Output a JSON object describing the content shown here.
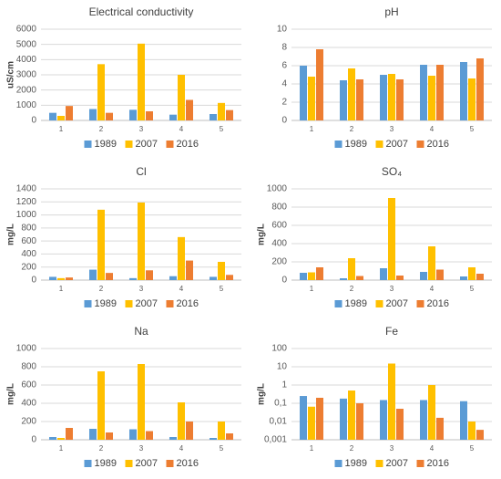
{
  "chart_data": [
    {
      "type": "bar",
      "title": "Electrical conductivity",
      "y_label": "uS/cm",
      "categories": [
        "1",
        "2",
        "3",
        "4",
        "5"
      ],
      "series": [
        {
          "name": "1989",
          "color": "#5b9bd5",
          "values": [
            500,
            750,
            700,
            380,
            420
          ]
        },
        {
          "name": "2007",
          "color": "#ffc000",
          "values": [
            300,
            3700,
            5050,
            3000,
            1150
          ]
        },
        {
          "name": "2016",
          "color": "#ed7d31",
          "values": [
            950,
            500,
            600,
            1350,
            680
          ]
        }
      ],
      "ylim": [
        0,
        6000
      ],
      "yticks": [
        0,
        1000,
        2000,
        3000,
        4000,
        5000,
        6000
      ],
      "grid": true,
      "legend": "bottom"
    },
    {
      "type": "bar",
      "title": "pH",
      "categories": [
        "1",
        "2",
        "3",
        "4",
        "5"
      ],
      "series": [
        {
          "name": "1989",
          "color": "#5b9bd5",
          "values": [
            6.0,
            4.4,
            5.0,
            6.1,
            6.4
          ]
        },
        {
          "name": "2007",
          "color": "#ffc000",
          "values": [
            4.8,
            5.7,
            5.1,
            4.9,
            4.6
          ]
        },
        {
          "name": "2016",
          "color": "#ed7d31",
          "values": [
            7.8,
            4.5,
            4.5,
            6.1,
            6.8
          ]
        }
      ],
      "ylim": [
        0,
        10
      ],
      "yticks": [
        0,
        2,
        4,
        6,
        8,
        10
      ],
      "grid": true,
      "legend": "bottom"
    },
    {
      "type": "bar",
      "title": "Cl",
      "y_label": "mg/L",
      "categories": [
        "1",
        "2",
        "3",
        "4",
        "5"
      ],
      "series": [
        {
          "name": "1989",
          "color": "#5b9bd5",
          "values": [
            50,
            160,
            30,
            60,
            50
          ]
        },
        {
          "name": "2007",
          "color": "#ffc000",
          "values": [
            30,
            1080,
            1190,
            660,
            280
          ]
        },
        {
          "name": "2016",
          "color": "#ed7d31",
          "values": [
            40,
            110,
            150,
            300,
            80
          ]
        }
      ],
      "ylim": [
        0,
        1400
      ],
      "yticks": [
        0,
        200,
        400,
        600,
        800,
        1000,
        1200,
        1400
      ],
      "grid": true,
      "legend": "bottom"
    },
    {
      "type": "bar",
      "title": "SO₄",
      "y_label": "mg/L",
      "categories": [
        "1",
        "2",
        "3",
        "4",
        "5"
      ],
      "series": [
        {
          "name": "1989",
          "color": "#5b9bd5",
          "values": [
            80,
            20,
            130,
            90,
            40
          ]
        },
        {
          "name": "2007",
          "color": "#ffc000",
          "values": [
            85,
            240,
            900,
            370,
            140
          ]
        },
        {
          "name": "2016",
          "color": "#ed7d31",
          "values": [
            140,
            45,
            50,
            115,
            70
          ]
        }
      ],
      "ylim": [
        0,
        1000
      ],
      "yticks": [
        0,
        200,
        400,
        600,
        800,
        1000
      ],
      "grid": true,
      "legend": "bottom"
    },
    {
      "type": "bar",
      "title": "Na",
      "y_label": "mg/L",
      "categories": [
        "1",
        "2",
        "3",
        "4",
        "5"
      ],
      "series": [
        {
          "name": "1989",
          "color": "#5b9bd5",
          "values": [
            30,
            120,
            115,
            30,
            20
          ]
        },
        {
          "name": "2007",
          "color": "#ffc000",
          "values": [
            20,
            750,
            830,
            410,
            200
          ]
        },
        {
          "name": "2016",
          "color": "#ed7d31",
          "values": [
            130,
            80,
            95,
            200,
            70
          ]
        }
      ],
      "ylim": [
        0,
        1000
      ],
      "yticks": [
        0,
        200,
        400,
        600,
        800,
        1000
      ],
      "grid": true,
      "legend": "bottom"
    },
    {
      "type": "bar",
      "title": "Fe",
      "y_label": "mg/L",
      "categories": [
        "1",
        "2",
        "3",
        "4",
        "5"
      ],
      "series": [
        {
          "name": "1989",
          "color": "#5b9bd5",
          "values": [
            0.25,
            0.18,
            0.15,
            0.15,
            0.13
          ]
        },
        {
          "name": "2007",
          "color": "#ffc000",
          "values": [
            0.065,
            0.5,
            15,
            1.0,
            0.01
          ]
        },
        {
          "name": "2016",
          "color": "#ed7d31",
          "values": [
            0.2,
            0.1,
            0.05,
            0.016,
            0.0035
          ]
        }
      ],
      "ylim": [
        0.001,
        100
      ],
      "log": true,
      "yticks": [
        {
          "value": 0.001,
          "label": "0,001"
        },
        {
          "value": 0.01,
          "label": "0,01"
        },
        {
          "value": 0.1,
          "label": "0,1"
        },
        1,
        10,
        100
      ],
      "grid": true,
      "legend": "bottom"
    }
  ]
}
